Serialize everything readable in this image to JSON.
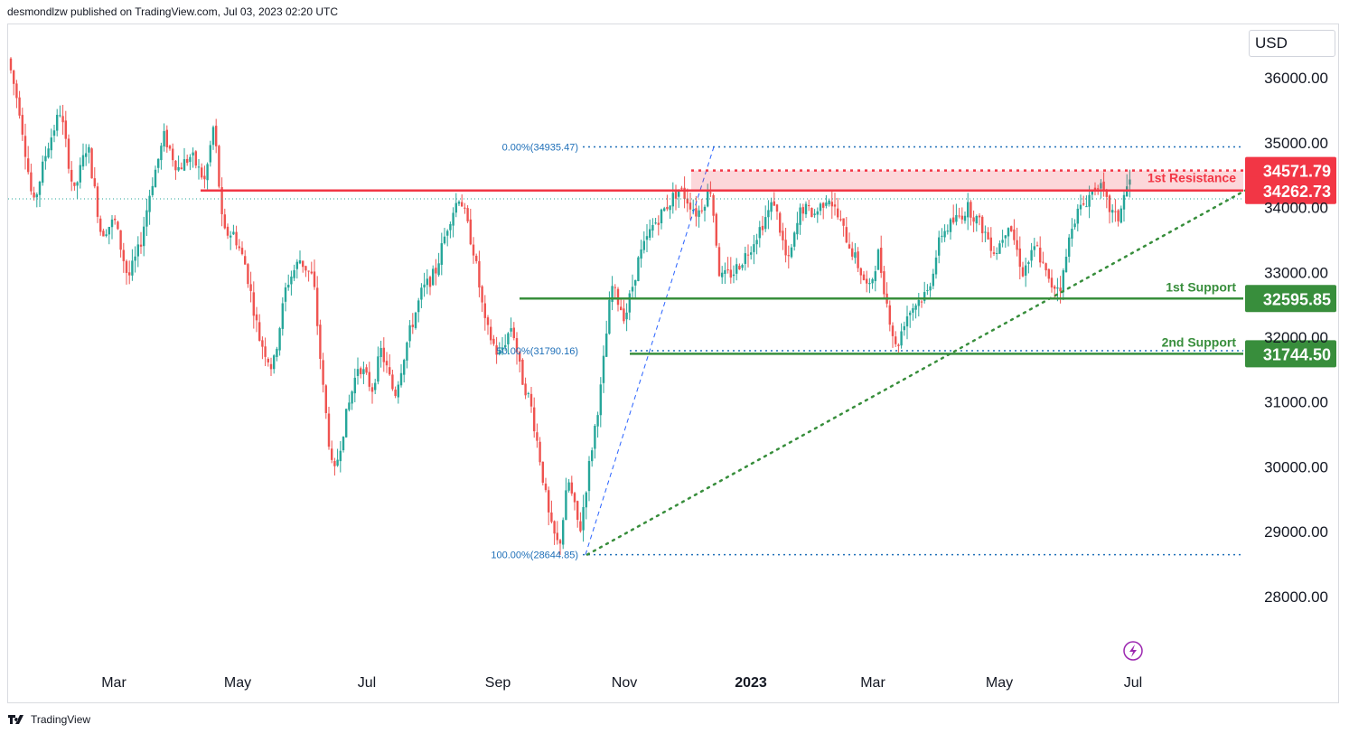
{
  "header": {
    "published_text": "desmondlzw published on TradingView.com, Jul 03, 2023 02:20 UTC"
  },
  "footer": {
    "brand_text": "TradingView",
    "logo_icon": "tradingview-logo-icon"
  },
  "price_scale": {
    "currency": "USD"
  },
  "chart_data": {
    "type": "candlestick",
    "price_axis": {
      "ticks": [
        "36000.00",
        "35000.00",
        "34000.00",
        "33000.00",
        "32000.00",
        "31000.00",
        "30000.00",
        "29000.00",
        "28000.00"
      ],
      "range": [
        27300,
        36700
      ]
    },
    "time_axis": {
      "labels": [
        "Mar",
        "May",
        "Jul",
        "Sep",
        "Nov",
        "2023",
        "Mar",
        "May",
        "Jul"
      ],
      "bold_labels": [
        "2023"
      ]
    },
    "levels": [
      {
        "label": "1st Resistance",
        "value": "34571.79",
        "color": "#f23645"
      },
      {
        "label": "",
        "value": "34262.73",
        "color": "#f23645"
      },
      {
        "label": "1st Support",
        "value": "32595.85",
        "color": "#388e3c"
      },
      {
        "label": "2nd Support",
        "value": "31744.50",
        "color": "#388e3c"
      }
    ],
    "fibonacci": [
      {
        "label": "0.00%(34935.47)",
        "price": 34935.47
      },
      {
        "label": "50.00%(31790.16)",
        "price": 31790.16
      },
      {
        "label": "100.00%(28644.85)",
        "price": 28644.85
      }
    ],
    "trendline": {
      "style": "dotted",
      "color": "#388e3c",
      "from": {
        "date": "Oct 2022",
        "price": 28644.85
      },
      "to": {
        "date": "Jul 2023",
        "price": 34262.73
      }
    },
    "resistance_zone": {
      "low": 34262.73,
      "high": 34571.79,
      "color": "#f23645"
    },
    "colors": {
      "up": "#26a69a",
      "down": "#ef5350"
    },
    "other_icons": [
      "lightning-icon"
    ]
  }
}
